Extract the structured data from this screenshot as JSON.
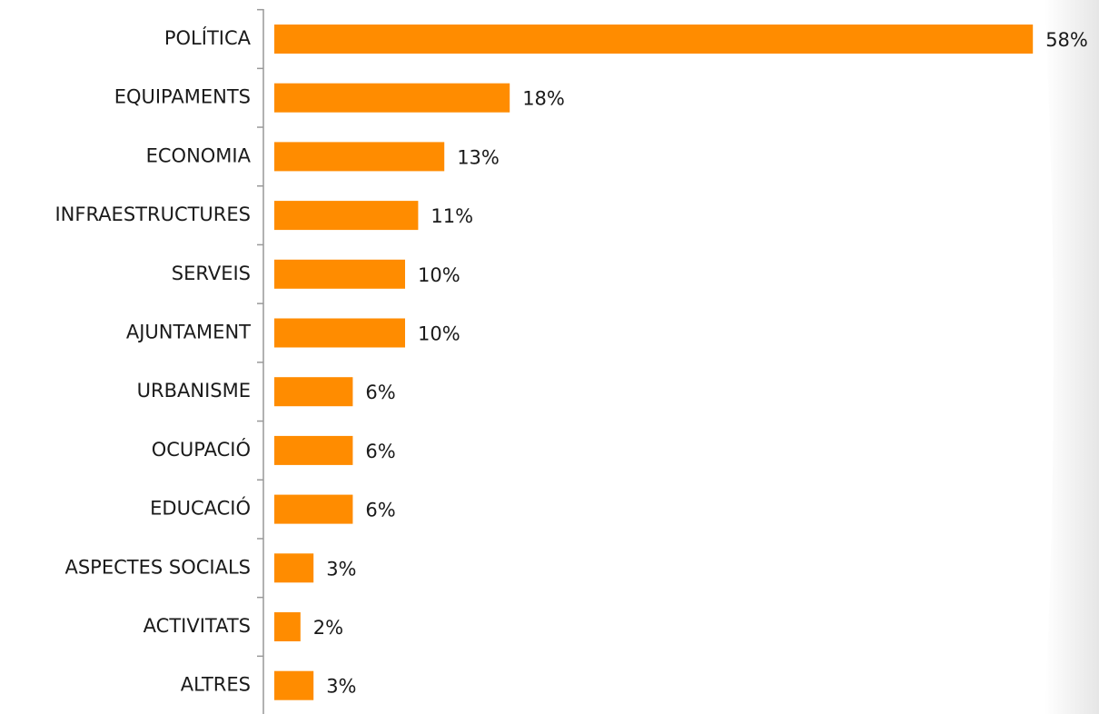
{
  "chart_data": {
    "type": "bar",
    "orientation": "horizontal",
    "categories": [
      "POLÍTICA",
      "EQUIPAMENTS",
      "ECONOMIA",
      "INFRAESTRUCTURES",
      "SERVEIS",
      "AJUNTAMENT",
      "URBANISME",
      "OCUPACIÓ",
      "EDUCACIÓ",
      "ASPECTES SOCIALS",
      "ACTIVITATS",
      "ALTRES"
    ],
    "values": [
      58,
      18,
      13,
      11,
      10,
      10,
      6,
      6,
      6,
      3,
      2,
      3
    ],
    "value_labels": [
      "58%",
      "18%",
      "13%",
      "11%",
      "10%",
      "10%",
      "6%",
      "6%",
      "6%",
      "3%",
      "2%",
      "3%"
    ],
    "color": "#ff8c00"
  }
}
